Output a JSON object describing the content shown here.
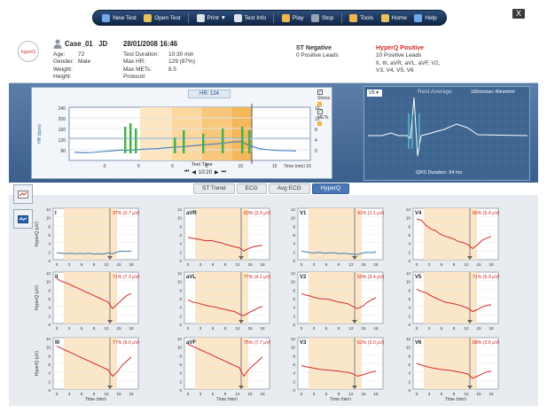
{
  "toolbar": {
    "items": [
      {
        "label": "New Test",
        "icon": "new-test-icon"
      },
      {
        "label": "Open Test",
        "icon": "open-folder-icon"
      },
      {
        "label": "Print ▼",
        "icon": "printer-icon"
      },
      {
        "label": "Test Info",
        "icon": "info-icon"
      },
      {
        "label": "Play",
        "icon": "play-icon"
      },
      {
        "label": "Stop",
        "icon": "stop-icon"
      },
      {
        "label": "Tools",
        "icon": "wrench-icon"
      },
      {
        "label": "Home",
        "icon": "home-icon"
      },
      {
        "label": "Help",
        "icon": "help-icon"
      }
    ],
    "close_label": "X"
  },
  "logo": {
    "text": "hyperQ"
  },
  "patient": {
    "case": "Case_01",
    "initials": "JD",
    "age_label": "Age:",
    "age": "72",
    "gender_label": "Gender:",
    "gender": "Male",
    "weight_label": "Weight:",
    "weight": "",
    "height_label": "Height:",
    "height": ""
  },
  "test": {
    "datetime": "28/01/2008 16:46",
    "duration_label": "Test Duration:",
    "duration": "10:30 min",
    "maxhr_label": "Max HR:",
    "maxhr": "129 (87%)",
    "maxmets_label": "Max METs:",
    "maxmets": "8.5",
    "protocol_label": "Protocol:",
    "protocol": ""
  },
  "st": {
    "title": "ST Negative",
    "detail": "0 Positive Leads"
  },
  "hyperq": {
    "title": "HyperQ Positive",
    "detail": "10 Positive Leads",
    "leads_line1": "II, III, aVR, aVL, aVF, V2,",
    "leads_line2": "V3, V4, V5, V6"
  },
  "trend": {
    "hr_label": "HR: 124",
    "test_time_label": "Test Time",
    "test_time": "10:20",
    "time_axis_label": "Time (min)",
    "x_ticks": [
      "0",
      "5",
      "6",
      "8",
      "10",
      "15",
      "16"
    ],
    "y_ticks_left": [
      "240",
      "200",
      "160",
      "120",
      "80"
    ],
    "y_ticks_right": [
      "16",
      "12",
      "8",
      "4",
      "0"
    ],
    "y_axis_left": "HR (bpm)",
    "legend_stress": "Stress",
    "legend_mets": "METs",
    "legend_checked": "✓"
  },
  "ecg": {
    "lead": "V5",
    "title": "Rest Average",
    "scale": "100mm/sec 40mm/mV",
    "qrs": "QRS Duration: 94 ms"
  },
  "tabs": [
    {
      "label": "ST Trend",
      "active": false
    },
    {
      "label": "ECG",
      "active": false
    },
    {
      "label": "Avg ECG",
      "active": false
    },
    {
      "label": "HyperQ",
      "active": true
    }
  ],
  "grid": {
    "y_axis_label": "HyperQ (µV)",
    "x_axis_label": "Time (min)",
    "x_ticks": [
      "0",
      "3",
      "6",
      "9",
      "12",
      "15",
      "18"
    ],
    "y_ticks": [
      "12",
      "10",
      "8",
      "6",
      "4",
      "2",
      "0"
    ],
    "leads": [
      {
        "name": "I",
        "pct": "37% (0.7 µV)",
        "color": "#3d7fa8",
        "values": [
          1.6,
          1.5,
          1.4,
          1.5,
          1.4,
          1.5,
          1.4,
          1.5,
          1.3,
          1.4,
          1.3,
          1.6,
          1.4,
          1.8,
          2.0,
          1.9,
          2.0
        ]
      },
      {
        "name": "aVR",
        "pct": "63% (3.3 µV)",
        "color": "#d62a2a",
        "values": [
          5.2,
          5.0,
          4.8,
          4.6,
          4.4,
          4.5,
          4.2,
          4.0,
          3.6,
          3.3,
          3.0,
          2.8,
          2.0,
          2.6,
          3.0,
          3.2,
          3.4
        ]
      },
      {
        "name": "V1",
        "pct": "41% (1.1 µV)",
        "color": "#3d7fa8",
        "values": [
          2.0,
          1.8,
          1.6,
          1.6,
          1.7,
          1.5,
          1.6,
          1.6,
          1.4,
          1.5,
          1.4,
          1.3,
          1.2,
          1.5,
          1.7,
          1.6,
          1.8
        ]
      },
      {
        "name": "V4",
        "pct": "66% (5.4 µV)",
        "color": "#d62a2a",
        "values": [
          9.5,
          9.2,
          8.0,
          7.2,
          6.8,
          6.0,
          5.5,
          5.2,
          4.8,
          4.2,
          4.0,
          3.5,
          2.6,
          3.4,
          4.5,
          5.0,
          5.4
        ]
      },
      {
        "name": "II",
        "pct": "71% (7.3 µV)",
        "color": "#d62a2a",
        "values": [
          10.5,
          9.8,
          9.5,
          9.0,
          8.5,
          8.0,
          7.5,
          7.0,
          6.5,
          6.0,
          5.5,
          5.0,
          3.5,
          4.5,
          5.5,
          6.5,
          7.0
        ]
      },
      {
        "name": "aVL",
        "pct": "77% (4.2 µV)",
        "color": "#d62a2a",
        "values": [
          5.5,
          5.0,
          4.8,
          4.5,
          4.2,
          4.0,
          3.8,
          3.5,
          3.3,
          3.0,
          2.8,
          2.2,
          1.8,
          2.5,
          3.0,
          3.6,
          4.0
        ]
      },
      {
        "name": "V2",
        "pct": "50% (3.4 µV)",
        "color": "#d62a2a",
        "values": [
          7.0,
          6.6,
          6.4,
          6.0,
          5.8,
          5.7,
          5.6,
          5.3,
          5.0,
          4.8,
          4.6,
          4.0,
          3.5,
          3.9,
          4.8,
          5.5,
          6.0
        ]
      },
      {
        "name": "V5",
        "pct": "71% (5.9 µV)",
        "color": "#d62a2a",
        "values": [
          8.0,
          7.5,
          7.2,
          6.5,
          6.0,
          5.5,
          5.0,
          4.8,
          4.6,
          4.3,
          4.0,
          3.6,
          2.8,
          3.2,
          3.8,
          4.2,
          4.4
        ]
      },
      {
        "name": "III",
        "pct": "77% (9.0 µV)",
        "color": "#d62a2a",
        "values": [
          10.0,
          9.5,
          9.0,
          8.5,
          8.0,
          7.5,
          7.0,
          6.5,
          6.0,
          5.5,
          5.0,
          4.5,
          3.0,
          4.0,
          5.5,
          6.5,
          7.5
        ]
      },
      {
        "name": "aVF",
        "pct": "75% (7.7 µV)",
        "color": "#d62a2a",
        "values": [
          10.5,
          10.0,
          9.5,
          9.0,
          8.5,
          8.0,
          7.5,
          7.0,
          6.5,
          6.0,
          5.5,
          5.0,
          3.0,
          4.5,
          5.5,
          6.5,
          7.5
        ]
      },
      {
        "name": "V3",
        "pct": "62% (3.0 µV)",
        "color": "#d62a2a",
        "values": [
          5.5,
          5.2,
          5.0,
          4.8,
          4.6,
          4.5,
          4.4,
          4.3,
          4.2,
          4.0,
          3.9,
          3.6,
          3.0,
          3.3,
          3.6,
          4.0,
          4.2
        ]
      },
      {
        "name": "V6",
        "pct": "68% (3.6 µV)",
        "color": "#d62a2a",
        "values": [
          6.0,
          5.6,
          5.3,
          5.0,
          4.8,
          4.6,
          4.5,
          4.4,
          4.2,
          4.0,
          3.8,
          3.5,
          2.5,
          3.0,
          3.5,
          4.0,
          4.2
        ]
      }
    ]
  }
}
